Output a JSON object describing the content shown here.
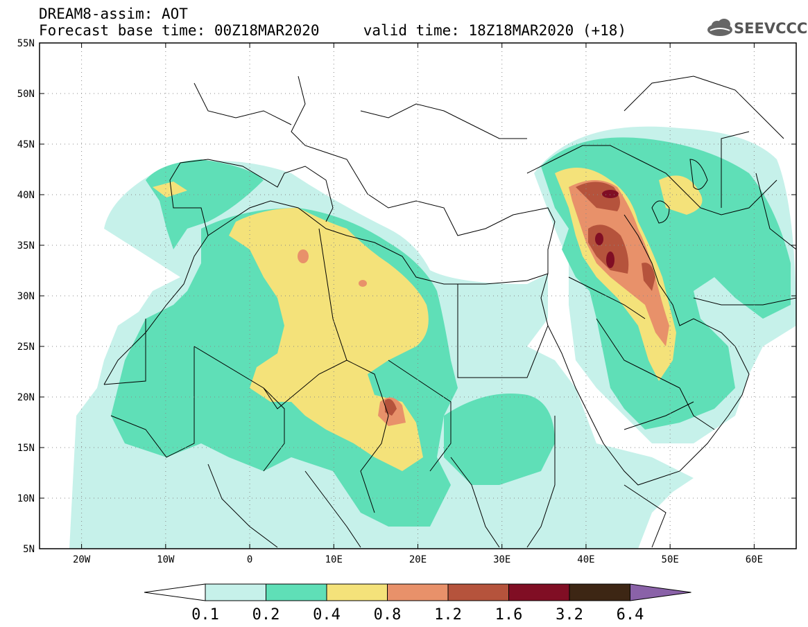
{
  "header": {
    "title_line1": "DREAM8-assim: AOT",
    "title_line2": "Forecast base time: 00Z18MAR2020     valid time: 18Z18MAR2020 (+18)",
    "logo_text": "SEEVCCC",
    "logo_icon": "cloud-icon"
  },
  "map": {
    "lon_ticks": [
      "20W",
      "10W",
      "0",
      "10E",
      "20E",
      "30E",
      "40E",
      "50E",
      "60E"
    ],
    "lat_ticks": [
      "55N",
      "50N",
      "45N",
      "40N",
      "35N",
      "30N",
      "25N",
      "20N",
      "15N",
      "10N",
      "5N"
    ],
    "lon_range": [
      -25,
      65
    ],
    "lat_range": [
      5,
      55
    ],
    "grid": "dotted"
  },
  "legend": {
    "labels": [
      "0.1",
      "0.2",
      "0.4",
      "0.8",
      "1.2",
      "1.6",
      "3.2",
      "6.4"
    ],
    "colors": [
      "#ffffff",
      "#c6f1ea",
      "#5fdfb7",
      "#f4e27a",
      "#e8916a",
      "#b5533c",
      "#800e24",
      "#3d2614",
      "#8a62a8"
    ]
  }
}
